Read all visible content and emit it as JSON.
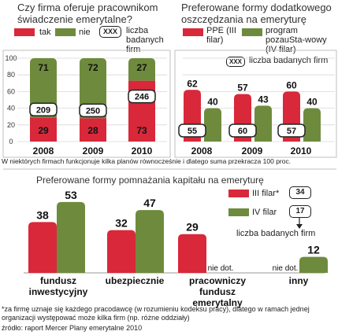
{
  "colors": {
    "red": "#d8283a",
    "green": "#6e8b3d",
    "frame": "#bfbfbf"
  },
  "chart_data": [
    {
      "type": "bar",
      "title": "Czy firma oferuje pracownikom świadczenie emerytalne?",
      "legend": {
        "red": "tak",
        "green": "nie",
        "box": "XXX",
        "box_text": "liczba badanych firm"
      },
      "categories": [
        "2008",
        "2009",
        "2010"
      ],
      "series": [
        {
          "name": "tak",
          "values": [
            29,
            28,
            73
          ]
        },
        {
          "name": "nie",
          "values": [
            71,
            72,
            27
          ]
        }
      ],
      "firm_counts": [
        209,
        250,
        246
      ],
      "yticks": [
        "0",
        "20",
        "40",
        "60",
        "80",
        "100"
      ],
      "ylim": [
        0,
        100
      ]
    },
    {
      "type": "bar",
      "title": "Preferowane formy dodatkowego oszczędzania na emeryturę",
      "legend": {
        "red": "PPE (III filar)",
        "green": "program pozauSta-wowy (IV filar)",
        "box": "XXX",
        "box_text": "liczba badanych firm"
      },
      "categories": [
        "2008",
        "2009",
        "2010"
      ],
      "series": [
        {
          "name": "PPE (III filar)",
          "values": [
            62,
            57,
            60
          ]
        },
        {
          "name": "program pozaustawowy (IV filar)",
          "values": [
            40,
            43,
            40
          ]
        }
      ],
      "firm_counts": [
        55,
        60,
        57
      ],
      "yticks": [
        "0",
        "20",
        "40",
        "60",
        "80",
        "100"
      ],
      "ylim": [
        0,
        100
      ]
    },
    {
      "type": "bar",
      "title": "Preferowane formy pomnażania kapitału na emeryturę",
      "legend": {
        "red": "III filar*",
        "green": "IV filar",
        "red_count": "34",
        "green_count": "17",
        "box_text": "liczba badanych firm"
      },
      "categories": [
        "fundusz inwestycyjny",
        "ubezpiecznie",
        "pracowniczy fundusz emerytalny",
        "inny"
      ],
      "series": [
        {
          "name": "III filar*",
          "values": [
            38,
            32,
            29,
            null
          ]
        },
        {
          "name": "IV filar",
          "values": [
            53,
            47,
            null,
            12
          ]
        }
      ],
      "na_label": "nie dot."
    }
  ],
  "note": "W niektórych firmach funkcjonuje kilka planów równocześnie i dlatego suma przekracza 100 proc.",
  "footnote": "*za firmę uznaje się każdego pracodawcę (w rozumieniu kodeksu pracy), dlatego w ramach jednej organizacji występować może kilka firm (np. różne oddziały)",
  "source": "źródło: raport Mercer Plany emerytalne 2010"
}
